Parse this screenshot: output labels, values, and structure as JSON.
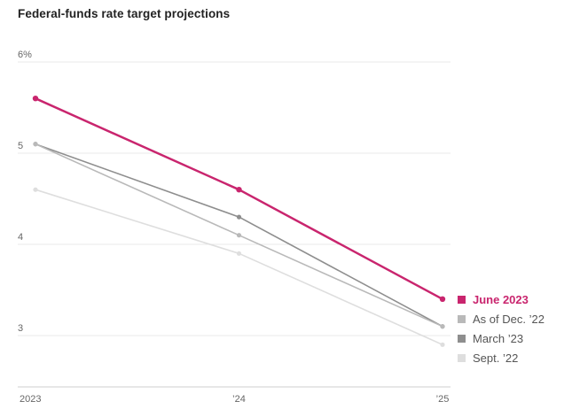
{
  "chart": {
    "title": "Federal-funds rate target projections"
  },
  "chart_data": {
    "type": "line",
    "x": [
      "2023",
      "’24",
      "’25"
    ],
    "series": [
      {
        "name": "June 2023",
        "values": [
          5.6,
          4.6,
          3.4
        ],
        "color": "#c9256e",
        "emphasis": true
      },
      {
        "name": "As of Dec. ’22",
        "values": [
          5.1,
          4.1,
          3.1
        ],
        "color": "#b9b9b9",
        "emphasis": false
      },
      {
        "name": "March ’23",
        "values": [
          5.1,
          4.3,
          3.1
        ],
        "color": "#8e8e8e",
        "emphasis": false
      },
      {
        "name": "Sept. ’22",
        "values": [
          4.6,
          3.9,
          2.9
        ],
        "color": "#dedede",
        "emphasis": false
      }
    ],
    "yticks": [
      {
        "value": 6,
        "label": "6%"
      },
      {
        "value": 5,
        "label": "5"
      },
      {
        "value": 4,
        "label": "4"
      },
      {
        "value": 3,
        "label": "3"
      }
    ],
    "ylim": [
      2.55,
      6.0
    ],
    "grid": true,
    "legend_position": "right",
    "axis_color": "#cfcfcf",
    "grid_color": "#e8e8e8",
    "tick_label_color": "#666666"
  }
}
